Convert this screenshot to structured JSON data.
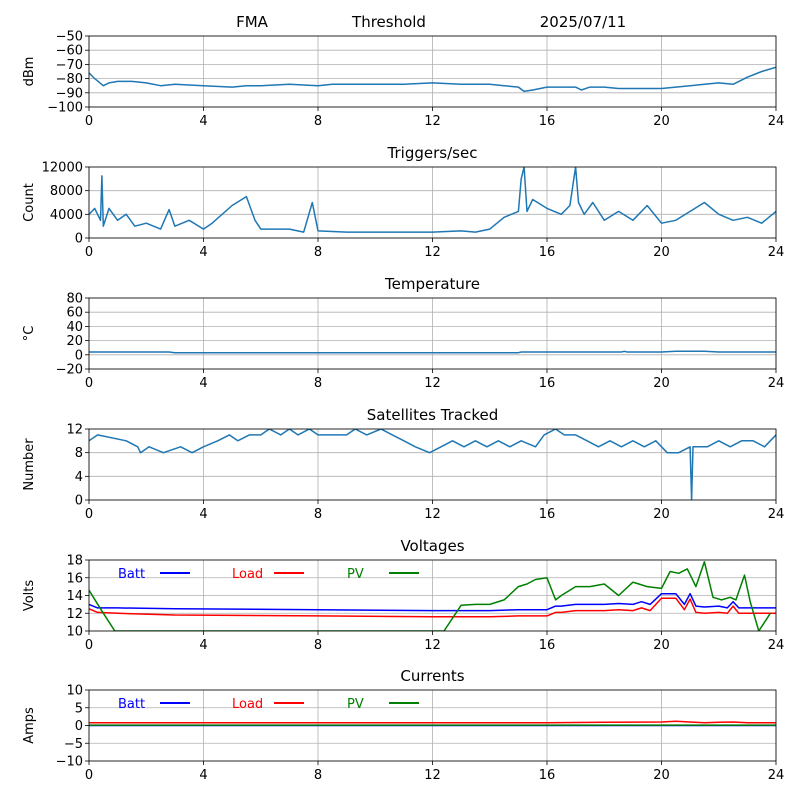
{
  "header": {
    "station": "FMA",
    "mode": "Threshold",
    "date": "2025/07/11"
  },
  "chart_data": [
    {
      "type": "line",
      "title": "",
      "ylabel": "dBm",
      "xlim": [
        0,
        24
      ],
      "ylim": [
        -100,
        -50
      ],
      "xticks": [
        0,
        4,
        8,
        12,
        16,
        20,
        24
      ],
      "yticks": [
        -100,
        -90,
        -80,
        -70,
        -60,
        -50
      ],
      "grid": true,
      "series": [
        {
          "color": "#1f77b4",
          "x": [
            0,
            0.2,
            0.5,
            0.7,
            1.0,
            1.5,
            2.0,
            2.5,
            3.0,
            4.0,
            5.0,
            5.5,
            6.0,
            7.0,
            8.0,
            8.5,
            9.0,
            10,
            11,
            12,
            13,
            14,
            14.5,
            15,
            15.2,
            15.5,
            16,
            17,
            17.2,
            17.5,
            18,
            18.5,
            19,
            19.5,
            20,
            20.5,
            21,
            21.5,
            22,
            22.5,
            23,
            23.5,
            24
          ],
          "y": [
            -76,
            -80,
            -85,
            -83,
            -82,
            -82,
            -83,
            -85,
            -84,
            -85,
            -86,
            -85,
            -85,
            -84,
            -85,
            -84,
            -84,
            -84,
            -84,
            -83,
            -84,
            -84,
            -85,
            -86,
            -89,
            -88,
            -86,
            -86,
            -88,
            -86,
            -86,
            -87,
            -87,
            -87,
            -87,
            -86,
            -85,
            -84,
            -83,
            -84,
            -79,
            -75,
            -72
          ]
        }
      ]
    },
    {
      "type": "line",
      "title": "Triggers/sec",
      "ylabel": "Count",
      "xlim": [
        0,
        24
      ],
      "ylim": [
        0,
        12000
      ],
      "xticks": [
        0,
        4,
        8,
        12,
        16,
        20,
        24
      ],
      "yticks": [
        0,
        4000,
        8000,
        12000
      ],
      "grid": true,
      "series": [
        {
          "color": "#1f77b4",
          "x": [
            0,
            0.2,
            0.4,
            0.45,
            0.5,
            0.7,
            1.0,
            1.3,
            1.6,
            2.0,
            2.5,
            2.8,
            3.0,
            3.5,
            4.0,
            4.3,
            5.0,
            5.5,
            5.8,
            6.0,
            6.5,
            7.0,
            7.5,
            7.8,
            8.0,
            9.0,
            10,
            11,
            12,
            13,
            13.5,
            14,
            14.5,
            15,
            15.1,
            15.2,
            15.3,
            15.5,
            16,
            16.5,
            16.8,
            17,
            17.1,
            17.3,
            17.6,
            18,
            18.5,
            19,
            19.5,
            20,
            20.5,
            21,
            21.5,
            22,
            22.5,
            23,
            23.5,
            24
          ],
          "y": [
            4000,
            5000,
            3000,
            10500,
            2000,
            5000,
            3000,
            4000,
            2000,
            2500,
            1500,
            4800,
            2000,
            3000,
            1500,
            2500,
            5500,
            7000,
            3000,
            1500,
            1500,
            1500,
            1000,
            6000,
            1200,
            1000,
            1000,
            1000,
            1000,
            1200,
            1000,
            1500,
            3500,
            4500,
            10000,
            12000,
            4500,
            6500,
            5000,
            4000,
            5500,
            12000,
            6000,
            4000,
            6000,
            3000,
            4500,
            3000,
            5500,
            2500,
            3000,
            4500,
            6000,
            4000,
            3000,
            3500,
            2500,
            4500
          ]
        }
      ]
    },
    {
      "type": "line",
      "title": "Temperature",
      "ylabel": "°C",
      "xlim": [
        0,
        24
      ],
      "ylim": [
        -20,
        80
      ],
      "xticks": [
        0,
        4,
        8,
        12,
        16,
        20,
        24
      ],
      "yticks": [
        -20,
        0,
        20,
        40,
        60,
        80
      ],
      "grid": true,
      "series": [
        {
          "color": "#1f77b4",
          "x": [
            0,
            2.8,
            3.0,
            12,
            15.0,
            15.1,
            18.6,
            18.7,
            18.8,
            20,
            20.5,
            21.5,
            22,
            24
          ],
          "y": [
            4,
            4,
            3,
            3,
            3,
            4,
            4,
            5,
            4,
            4,
            5,
            5,
            4,
            4
          ]
        }
      ]
    },
    {
      "type": "line",
      "title": "Satellites Tracked",
      "ylabel": "Number",
      "xlim": [
        0,
        24
      ],
      "ylim": [
        0,
        12
      ],
      "xticks": [
        0,
        4,
        8,
        12,
        16,
        20,
        24
      ],
      "yticks": [
        0,
        4,
        8,
        12
      ],
      "grid": true,
      "series": [
        {
          "color": "#1f77b4",
          "x": [
            0,
            0.3,
            1.3,
            1.7,
            1.8,
            2.1,
            2.6,
            3.2,
            3.6,
            4.0,
            4.5,
            4.9,
            5.2,
            5.6,
            6.0,
            6.3,
            6.7,
            7.0,
            7.3,
            7.7,
            8.0,
            8.5,
            9.0,
            9.3,
            9.7,
            10.2,
            10.6,
            11.0,
            11.4,
            11.9,
            12.3,
            12.7,
            13.1,
            13.5,
            13.9,
            14.3,
            14.7,
            15.1,
            15.6,
            15.9,
            16.3,
            16.6,
            17.0,
            17.4,
            17.8,
            18.2,
            18.6,
            19.0,
            19.4,
            19.8,
            20.2,
            20.6,
            21.0,
            21.05,
            21.1,
            21.2,
            21.6,
            22.0,
            22.4,
            22.8,
            23.2,
            23.6,
            23.8,
            24
          ],
          "y": [
            10,
            11,
            10,
            9,
            8,
            9,
            8,
            9,
            8,
            9,
            10,
            11,
            10,
            11,
            11,
            12,
            11,
            12,
            11,
            12,
            11,
            11,
            11,
            12,
            11,
            12,
            11,
            10,
            9,
            8,
            9,
            10,
            9,
            10,
            9,
            10,
            9,
            10,
            9,
            11,
            12,
            11,
            11,
            10,
            9,
            10,
            9,
            10,
            9,
            10,
            8,
            8,
            9,
            0,
            9,
            9,
            9,
            10,
            9,
            10,
            10,
            9,
            10,
            11
          ]
        }
      ]
    },
    {
      "type": "line",
      "title": "Voltages",
      "ylabel": "Volts",
      "xlim": [
        0,
        24
      ],
      "ylim": [
        10,
        18
      ],
      "xticks": [
        0,
        4,
        8,
        12,
        16,
        20,
        24
      ],
      "yticks": [
        10,
        12,
        14,
        16,
        18
      ],
      "grid": true,
      "legend": "inline-top",
      "series": [
        {
          "name": "Batt",
          "color": "#0000ff",
          "x": [
            0,
            0.3,
            1,
            3,
            8,
            12,
            14,
            15,
            16,
            16.3,
            16.5,
            17,
            18,
            18.5,
            19,
            19.3,
            19.6,
            20,
            20.5,
            20.8,
            21,
            21.2,
            21.5,
            22,
            22.3,
            22.5,
            22.7,
            23,
            24
          ],
          "y": [
            13.0,
            12.6,
            12.6,
            12.5,
            12.4,
            12.3,
            12.3,
            12.4,
            12.4,
            12.8,
            12.8,
            13.0,
            13.0,
            13.1,
            13.0,
            13.3,
            13.0,
            14.2,
            14.2,
            13.0,
            14.2,
            12.8,
            12.7,
            12.8,
            12.6,
            13.3,
            12.6,
            12.6,
            12.6
          ]
        },
        {
          "name": "Load",
          "color": "#ff0000",
          "x": [
            0,
            0.3,
            1,
            3,
            8,
            12,
            14,
            15,
            16,
            16.3,
            16.5,
            17,
            18,
            18.5,
            19,
            19.3,
            19.6,
            20,
            20.5,
            20.8,
            21,
            21.2,
            21.5,
            22,
            22.3,
            22.5,
            22.7,
            23,
            24
          ],
          "y": [
            12.5,
            12.1,
            12.0,
            11.8,
            11.7,
            11.6,
            11.6,
            11.7,
            11.7,
            12.1,
            12.1,
            12.3,
            12.3,
            12.4,
            12.3,
            12.6,
            12.3,
            13.7,
            13.7,
            12.4,
            13.6,
            12.1,
            12.0,
            12.1,
            12.0,
            12.8,
            12.0,
            12.0,
            12.0
          ]
        },
        {
          "name": "PV",
          "color": "#008000",
          "x": [
            0,
            0.4,
            0.9,
            12.4,
            13.0,
            13.5,
            14.0,
            14.5,
            15.0,
            15.3,
            15.6,
            16.0,
            16.3,
            16.5,
            17.0,
            17.5,
            18.0,
            18.5,
            19.0,
            19.5,
            20.0,
            20.3,
            20.6,
            20.9,
            21.2,
            21.5,
            21.8,
            22.1,
            22.4,
            22.6,
            22.9,
            23.1,
            23.4,
            23.8
          ],
          "y": [
            14.6,
            12.5,
            10,
            10,
            12.9,
            13.0,
            13.0,
            13.5,
            15.0,
            15.3,
            15.8,
            16.0,
            13.5,
            14.0,
            15.0,
            15.0,
            15.3,
            14.0,
            15.5,
            15.0,
            14.8,
            16.7,
            16.5,
            17.0,
            15.0,
            17.8,
            13.8,
            13.5,
            13.8,
            13.5,
            16.3,
            13.3,
            10,
            12.0
          ]
        }
      ]
    },
    {
      "type": "line",
      "title": "Currents",
      "ylabel": "Amps",
      "xlim": [
        0,
        24
      ],
      "ylim": [
        -10,
        10
      ],
      "xticks": [
        0,
        4,
        8,
        12,
        16,
        20,
        24
      ],
      "yticks": [
        -10,
        -5,
        0,
        5,
        10
      ],
      "grid": true,
      "legend": "inline-top",
      "series": [
        {
          "name": "Batt",
          "color": "#0000ff",
          "x": [
            0,
            24
          ],
          "y": [
            0,
            0
          ]
        },
        {
          "name": "Load",
          "color": "#ff0000",
          "x": [
            0,
            16,
            18,
            20,
            20.5,
            21,
            21.5,
            22,
            22.5,
            23,
            24
          ],
          "y": [
            0.8,
            0.8,
            0.9,
            1.0,
            1.2,
            1.0,
            0.8,
            0.9,
            1.0,
            0.8,
            0.8
          ]
        },
        {
          "name": "PV",
          "color": "#008000",
          "x": [
            0,
            24
          ],
          "y": [
            0.1,
            0.1
          ]
        }
      ]
    }
  ]
}
